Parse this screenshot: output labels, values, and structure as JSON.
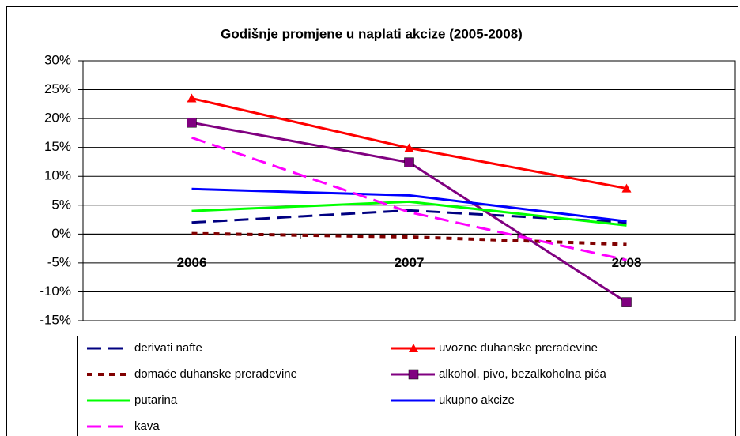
{
  "chart_data": {
    "type": "line",
    "title": "Godišnje promjene u naplati akcize (2005-2008)",
    "categories": [
      "2006",
      "2007",
      "2008"
    ],
    "ylim": [
      -15,
      30
    ],
    "yticks": [
      {
        "value": -15,
        "label": "-15%"
      },
      {
        "value": -10,
        "label": "-10%"
      },
      {
        "value": -5,
        "label": "-5%"
      },
      {
        "value": 0,
        "label": "0%"
      },
      {
        "value": 5,
        "label": "5%"
      },
      {
        "value": 10,
        "label": "10%"
      },
      {
        "value": 15,
        "label": "15%"
      },
      {
        "value": 20,
        "label": "20%"
      },
      {
        "value": 25,
        "label": "25%"
      },
      {
        "value": 30,
        "label": "30%"
      }
    ],
    "grid": true,
    "legend": "bottom",
    "series": [
      {
        "name": "derivati nafte",
        "color": "#000080",
        "style": "dash",
        "values": [
          2.0,
          4.1,
          2.0
        ]
      },
      {
        "name": "uvozne duhanske prerađevine",
        "color": "#ff0000",
        "style": "solid",
        "marker": "triangle",
        "values": [
          23.5,
          14.9,
          7.9
        ]
      },
      {
        "name": "domaće duhanske prerađevine",
        "color": "#800000",
        "style": "dot",
        "values": [
          0.1,
          -0.5,
          -1.8
        ]
      },
      {
        "name": "alkohol, pivo, bezalkoholna pića",
        "color": "#800080",
        "style": "solid",
        "marker": "square",
        "values": [
          19.3,
          12.4,
          -11.8
        ]
      },
      {
        "name": "putarina",
        "color": "#00ff00",
        "style": "solid",
        "values": [
          4.0,
          5.6,
          1.5
        ]
      },
      {
        "name": "ukupno akcize",
        "color": "#0000ff",
        "style": "solid",
        "values": [
          7.8,
          6.7,
          2.2
        ]
      },
      {
        "name": "kava",
        "color": "#ff00ff",
        "style": "dash",
        "values": [
          16.7,
          3.8,
          -4.5
        ]
      }
    ]
  }
}
